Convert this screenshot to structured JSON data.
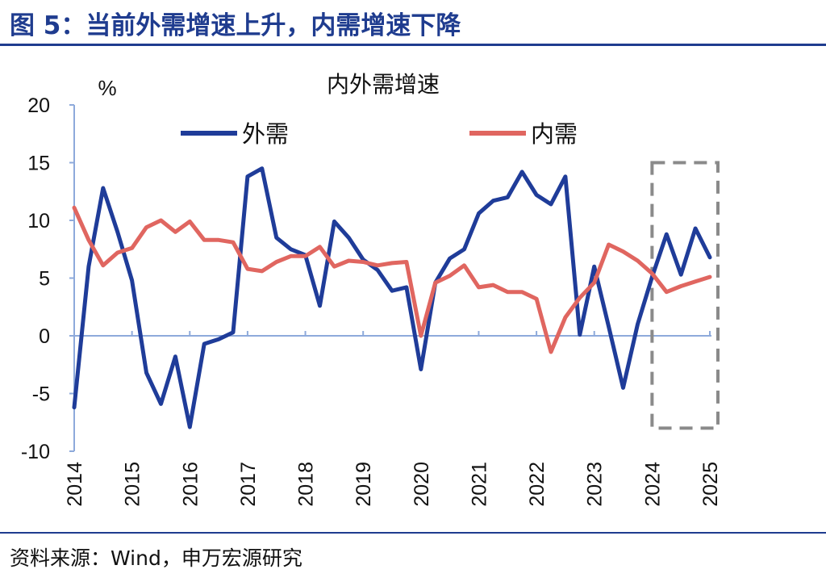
{
  "figure_title": "图 5：当前外需增速上升，内需增速下降",
  "source_note": "资料来源：Wind，申万宏源研究",
  "colors": {
    "accent": "#1f3c8f",
    "external": "#1f3c99",
    "internal": "#e06660",
    "axis": "#8eaadb",
    "highlight_box": "#8a8a8a"
  },
  "chart_data": {
    "type": "line",
    "title": "内外需增速",
    "ylabel": "%",
    "xlabel": "",
    "ylim": [
      -10,
      20
    ],
    "yticks": [
      20,
      15,
      10,
      5,
      0,
      -5,
      -10
    ],
    "xlim": [
      2014,
      2025
    ],
    "xticks": [
      "2014",
      "2015",
      "2016",
      "2017",
      "2018",
      "2019",
      "2020",
      "2021",
      "2022",
      "2023",
      "2024",
      "2025"
    ],
    "legend_position": "top",
    "grid": false,
    "series": [
      {
        "name": "外需",
        "color": "#1f3c99",
        "x": [
          2014,
          2014.25,
          2014.5,
          2014.75,
          2015,
          2015.25,
          2015.5,
          2015.75,
          2016,
          2016.25,
          2016.5,
          2016.75,
          2017,
          2017.25,
          2017.5,
          2017.75,
          2018,
          2018.25,
          2018.5,
          2018.75,
          2019,
          2019.25,
          2019.5,
          2019.75,
          2020,
          2020.25,
          2020.5,
          2020.75,
          2021,
          2021.25,
          2021.5,
          2021.75,
          2022,
          2022.25,
          2022.5,
          2022.75,
          2023,
          2023.25,
          2023.5,
          2023.75,
          2024,
          2024.25,
          2024.5,
          2024.75,
          2025
        ],
        "y": [
          -6.2,
          6.0,
          12.8,
          9.0,
          4.8,
          -3.2,
          -5.9,
          -1.8,
          -7.9,
          -0.7,
          -0.3,
          0.3,
          13.8,
          14.5,
          8.5,
          7.5,
          7.0,
          2.6,
          9.9,
          8.5,
          6.6,
          5.7,
          3.9,
          4.2,
          -2.9,
          4.6,
          6.7,
          7.5,
          10.6,
          11.7,
          12.0,
          14.2,
          12.2,
          11.4,
          13.8,
          0.1,
          6.0,
          0.8,
          -4.5,
          1.0,
          5.1,
          8.8,
          5.3,
          9.3,
          6.8
        ]
      },
      {
        "name": "内需",
        "color": "#e06660",
        "x": [
          2014,
          2014.25,
          2014.5,
          2014.75,
          2015,
          2015.25,
          2015.5,
          2015.75,
          2016,
          2016.25,
          2016.5,
          2016.75,
          2017,
          2017.25,
          2017.5,
          2017.75,
          2018,
          2018.25,
          2018.5,
          2018.75,
          2019,
          2019.25,
          2019.5,
          2019.75,
          2020,
          2020.25,
          2020.5,
          2020.75,
          2021,
          2021.25,
          2021.5,
          2021.75,
          2022,
          2022.25,
          2022.5,
          2022.75,
          2023,
          2023.25,
          2023.5,
          2023.75,
          2024,
          2024.25,
          2024.5,
          2024.75,
          2025
        ],
        "y": [
          11.1,
          8.3,
          6.1,
          7.2,
          7.6,
          9.4,
          10.0,
          9.0,
          9.9,
          8.3,
          8.3,
          8.1,
          5.8,
          5.6,
          6.4,
          6.9,
          6.9,
          7.7,
          6.0,
          6.5,
          6.4,
          6.1,
          6.3,
          6.4,
          0.0,
          4.6,
          5.2,
          6.1,
          4.2,
          4.4,
          3.8,
          3.8,
          3.2,
          -1.4,
          1.6,
          3.3,
          4.6,
          7.9,
          7.3,
          6.5,
          5.4,
          3.8,
          4.3,
          4.7,
          5.1
        ]
      }
    ],
    "highlight_box": {
      "x_range": [
        2024,
        2025
      ],
      "y_range": [
        -8,
        15
      ]
    }
  }
}
